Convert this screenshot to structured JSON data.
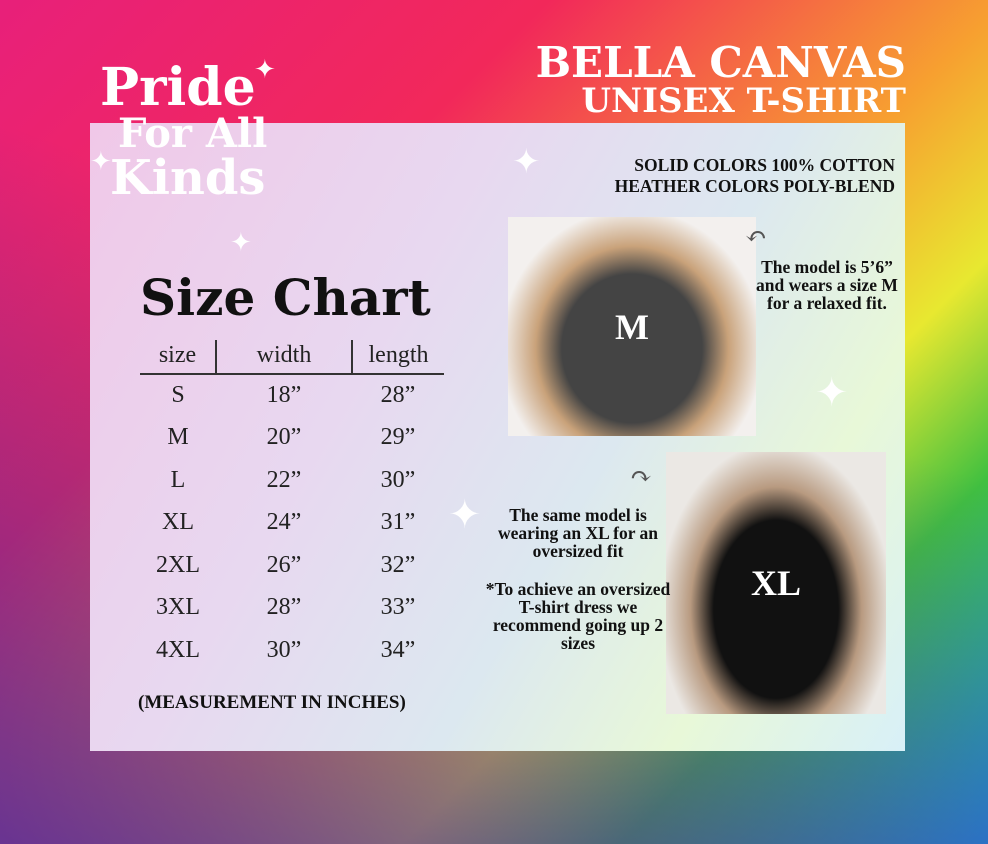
{
  "logo": {
    "line1": "Pride",
    "line2": "For All",
    "line3": "Kinds"
  },
  "brand": {
    "line1": "BELLA CANVAS",
    "line2": "UNISEX T-SHIRT"
  },
  "fabric": {
    "line1": "SOLID COLORS 100% COTTON",
    "line2": "HEATHER COLORS POLY-BLEND"
  },
  "size_chart": {
    "title": "Size Chart",
    "headers": [
      "size",
      "width",
      "length"
    ],
    "rows": [
      [
        "S",
        "18”",
        "28”"
      ],
      [
        "M",
        "20”",
        "29”"
      ],
      [
        "L",
        "22”",
        "30”"
      ],
      [
        "XL",
        "24”",
        "31”"
      ],
      [
        "2XL",
        "26”",
        "32”"
      ],
      [
        "3XL",
        "28”",
        "33”"
      ],
      [
        "4XL",
        "30”",
        "34”"
      ]
    ],
    "note": "(MEASUREMENT IN INCHES)"
  },
  "photos": {
    "m": {
      "label": "M",
      "caption": "The model is 5’6” and wears a size M for a relaxed fit."
    },
    "xl": {
      "label": "XL",
      "caption": "The same model is wearing an XL for an oversized fit",
      "tip": "*To achieve an oversized T-shirt dress we recommend going up 2 sizes"
    }
  }
}
